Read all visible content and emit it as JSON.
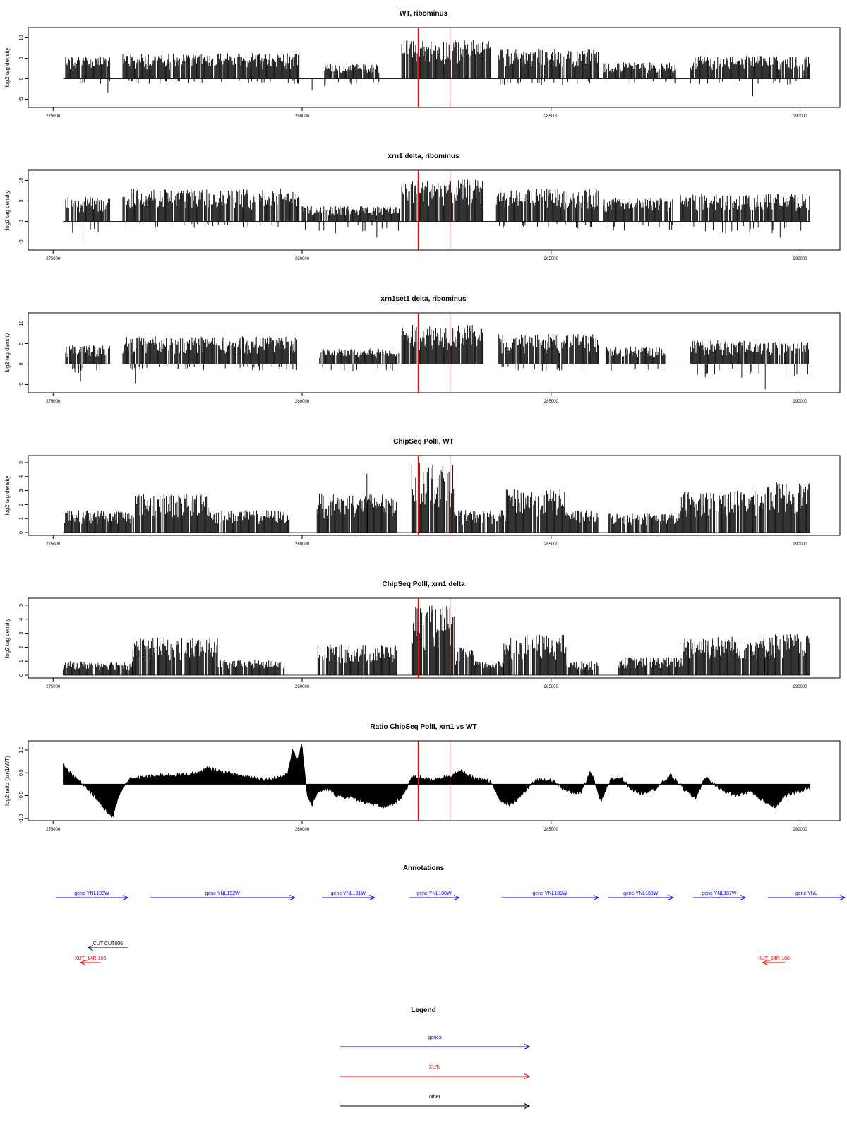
{
  "colors": {
    "bars": "#000000",
    "marker": "#ff0000",
    "gene": "#0000ff",
    "xut": "#ff0000",
    "other": "#000000",
    "background": "#ffffff"
  },
  "shared": {
    "xlim": [
      274500,
      290800
    ],
    "x_ticks": [
      275000,
      280000,
      285000,
      290000
    ],
    "x_tick_labels": [
      "275000",
      "280000",
      "285000",
      "290000"
    ],
    "marker_positions": [
      282330,
      282970
    ],
    "grid": false
  },
  "chart_data": [
    {
      "type": "bar",
      "title": "WT, ribominus",
      "ylabel": "log2 tag density",
      "ylim": [
        -7,
        12.5
      ],
      "y_ticks": [
        -5,
        0,
        5,
        10
      ],
      "y_tick_labels": [
        "-5",
        "0",
        "5",
        "10"
      ],
      "segments": [
        {
          "x": [
            275250,
            276150
          ],
          "pos": 5.5,
          "neg": 1.6
        },
        {
          "x": [
            276400,
            279950
          ],
          "pos": 6.3,
          "neg": 1.3
        },
        {
          "x": [
            280450,
            281550
          ],
          "pos": 3.6,
          "neg": 2.0
        },
        {
          "x": [
            282000,
            283800
          ],
          "pos": 9.5,
          "neg": 0
        },
        {
          "x": [
            283950,
            285950
          ],
          "pos": 7.3,
          "neg": 1.5
        },
        {
          "x": [
            286050,
            287500
          ],
          "pos": 4.0,
          "neg": 1.6
        },
        {
          "x": [
            287800,
            290200
          ],
          "pos": 5.6,
          "neg": 1.5
        }
      ],
      "peaks": [
        {
          "x": 276100,
          "value": -3.4
        },
        {
          "x": 289050,
          "value": -4.3
        },
        {
          "x": 280200,
          "value": -2.9
        }
      ]
    },
    {
      "type": "bar",
      "title": "xrn1 delta, ribominus",
      "ylabel": "log2 tag density",
      "ylim": [
        -7,
        12.5
      ],
      "y_ticks": [
        -5,
        0,
        5,
        10
      ],
      "y_tick_labels": [
        "-5",
        "0",
        "5",
        "10"
      ],
      "segments": [
        {
          "x": [
            275250,
            276150
          ],
          "pos": 6.0,
          "neg": 3.0
        },
        {
          "x": [
            276400,
            279950
          ],
          "pos": 8.0,
          "neg": 1.6
        },
        {
          "x": [
            280000,
            281950
          ],
          "pos": 3.8,
          "neg": 3.0
        },
        {
          "x": [
            282000,
            283650
          ],
          "pos": 10.2,
          "neg": 0
        },
        {
          "x": [
            283900,
            285950
          ],
          "pos": 8.0,
          "neg": 1.8
        },
        {
          "x": [
            286050,
            287450
          ],
          "pos": 5.8,
          "neg": 2.5
        },
        {
          "x": [
            287600,
            290200
          ],
          "pos": 6.8,
          "neg": 3.0
        }
      ],
      "peaks": [
        {
          "x": 275600,
          "value": -4.5
        },
        {
          "x": 281500,
          "value": -4.0
        },
        {
          "x": 289600,
          "value": -4.0
        }
      ]
    },
    {
      "type": "bar",
      "title": "xrn1set1 delta, ribominus",
      "ylabel": "log2 tag density",
      "ylim": [
        -7,
        12.5
      ],
      "y_ticks": [
        -5,
        0,
        5,
        10
      ],
      "y_tick_labels": [
        "-5",
        "0",
        "5",
        "10"
      ],
      "segments": [
        {
          "x": [
            275250,
            276150
          ],
          "pos": 4.6,
          "neg": 2.2
        },
        {
          "x": [
            276400,
            279900
          ],
          "pos": 6.8,
          "neg": 1.6
        },
        {
          "x": [
            280350,
            281950
          ],
          "pos": 3.8,
          "neg": 2.0
        },
        {
          "x": [
            282000,
            283650
          ],
          "pos": 9.6,
          "neg": 0
        },
        {
          "x": [
            283950,
            285950
          ],
          "pos": 7.4,
          "neg": 1.8
        },
        {
          "x": [
            286100,
            287300
          ],
          "pos": 4.3,
          "neg": 2.0
        },
        {
          "x": [
            287800,
            290200
          ],
          "pos": 5.8,
          "neg": 3.4
        }
      ],
      "peaks": [
        {
          "x": 276650,
          "value": -4.8
        },
        {
          "x": 289300,
          "value": -6.2
        },
        {
          "x": 275550,
          "value": -4.3
        }
      ]
    },
    {
      "type": "bar",
      "title": "ChipSeq PolII, WT",
      "ylabel": "log2 tag density",
      "ylim": [
        -0.2,
        5.5
      ],
      "y_ticks": [
        0,
        1,
        2,
        3,
        4,
        5
      ],
      "y_tick_labels": [
        "0",
        "1",
        "2",
        "3",
        "4",
        "5"
      ],
      "segments": [
        {
          "x": [
            275200,
            276600
          ],
          "pos": 1.6,
          "neg": 0
        },
        {
          "x": [
            276600,
            278150
          ],
          "pos": 2.8,
          "neg": 0
        },
        {
          "x": [
            278150,
            279750
          ],
          "pos": 1.6,
          "neg": 0
        },
        {
          "x": [
            280300,
            281900
          ],
          "pos": 2.8,
          "neg": 0
        },
        {
          "x": [
            282200,
            283050
          ],
          "pos": 5.0,
          "neg": 0
        },
        {
          "x": [
            283050,
            284100
          ],
          "pos": 1.6,
          "neg": 0
        },
        {
          "x": [
            284100,
            285300
          ],
          "pos": 3.1,
          "neg": 0
        },
        {
          "x": [
            285300,
            285950
          ],
          "pos": 1.6,
          "neg": 0
        },
        {
          "x": [
            286150,
            287600
          ],
          "pos": 1.4,
          "neg": 0
        },
        {
          "x": [
            287600,
            289300
          ],
          "pos": 3.0,
          "neg": 0
        },
        {
          "x": [
            289300,
            290200
          ],
          "pos": 3.6,
          "neg": 0
        }
      ],
      "peaks": [
        {
          "x": 281300,
          "value": 4.2
        }
      ]
    },
    {
      "type": "bar",
      "title": "ChipSeq PolII, xrn1 delta",
      "ylabel": "log2 tag density",
      "ylim": [
        -0.2,
        5.5
      ],
      "y_ticks": [
        0,
        1,
        2,
        3,
        4,
        5
      ],
      "y_tick_labels": [
        "0",
        "1",
        "2",
        "3",
        "4",
        "5"
      ],
      "segments": [
        {
          "x": [
            275200,
            276600
          ],
          "pos": 1.0,
          "neg": 0
        },
        {
          "x": [
            276600,
            278300
          ],
          "pos": 2.7,
          "neg": 0
        },
        {
          "x": [
            278300,
            279650
          ],
          "pos": 1.1,
          "neg": 0
        },
        {
          "x": [
            280300,
            281900
          ],
          "pos": 2.2,
          "neg": 0
        },
        {
          "x": [
            282200,
            283050
          ],
          "pos": 5.0,
          "neg": 0
        },
        {
          "x": [
            283050,
            283450
          ],
          "pos": 2.0,
          "neg": 0
        },
        {
          "x": [
            283450,
            284050
          ],
          "pos": 1.0,
          "neg": 0
        },
        {
          "x": [
            284050,
            285300
          ],
          "pos": 2.9,
          "neg": 0
        },
        {
          "x": [
            285300,
            285950
          ],
          "pos": 1.0,
          "neg": 0
        },
        {
          "x": [
            286350,
            287650
          ],
          "pos": 1.3,
          "neg": 0
        },
        {
          "x": [
            287650,
            289300
          ],
          "pos": 2.8,
          "neg": 0
        },
        {
          "x": [
            289300,
            290200
          ],
          "pos": 3.0,
          "neg": 0
        }
      ],
      "peaks": [
        {
          "x": 283050,
          "value": 4.2
        }
      ]
    },
    {
      "type": "area",
      "title": "Ratio ChipSeq PolII, xrn1 vs WT",
      "ylabel": "log2 ratio (xrn1/WT)",
      "ylim": [
        -1.6,
        1.9
      ],
      "y_ticks": [
        -1.5,
        -0.5,
        0.5,
        1.5
      ],
      "y_tick_labels": [
        "-1.5",
        "-0.5",
        "0.5",
        "1.5"
      ],
      "profile_x": [
        275200,
        275300,
        275500,
        275700,
        275900,
        276100,
        276200,
        276300,
        276500,
        276800,
        277200,
        277600,
        277900,
        278100,
        278300,
        278700,
        279000,
        279300,
        279500,
        279700,
        279800,
        279900,
        280000,
        280100,
        280200,
        280300,
        280500,
        280700,
        281000,
        281300,
        281600,
        281800,
        282000,
        282200,
        282400,
        282600,
        282800,
        283000,
        283200,
        283400,
        283600,
        283800,
        284000,
        284200,
        284400,
        284700,
        285000,
        285300,
        285600,
        285800,
        286000,
        286200,
        286400,
        286600,
        286800,
        287100,
        287400,
        287700,
        287900,
        288100,
        288400,
        288700,
        289000,
        289300,
        289500,
        289700,
        290000,
        290200
      ],
      "profile_y": [
        0.9,
        0.6,
        0.2,
        -0.2,
        -0.7,
        -1.3,
        -1.45,
        -0.6,
        0.2,
        0.3,
        0.4,
        0.4,
        0.5,
        0.7,
        0.6,
        0.4,
        0.3,
        0.2,
        0.3,
        0.4,
        1.5,
        1.1,
        1.7,
        -0.5,
        -0.9,
        -0.4,
        -0.2,
        -0.5,
        -0.6,
        -0.8,
        -1.0,
        -0.9,
        -0.6,
        0.3,
        0.3,
        0.2,
        0.3,
        0.4,
        0.6,
        0.3,
        0.2,
        0.1,
        -0.8,
        -0.9,
        -0.5,
        0.2,
        0.2,
        -0.3,
        -0.4,
        0.6,
        -0.8,
        0.2,
        0.3,
        -0.2,
        -0.4,
        -0.2,
        0.4,
        -0.3,
        -0.6,
        0.3,
        -0.2,
        -0.5,
        -0.3,
        -0.8,
        -1.0,
        -0.5,
        -0.3,
        -0.1
      ]
    }
  ],
  "annotations": {
    "title": "Annotations",
    "features": [
      {
        "label": "gene YNL193W",
        "kind": "gene",
        "start": 275050,
        "end": 276500,
        "strand": "+",
        "row": 1
      },
      {
        "label": "gene YNL192W",
        "kind": "gene",
        "start": 276950,
        "end": 279850,
        "strand": "+",
        "row": 1
      },
      {
        "label": "gene YNL191W",
        "kind": "gene",
        "start": 280400,
        "end": 281450,
        "strand": "+",
        "row": 1
      },
      {
        "label": "gene YNL190W",
        "kind": "gene",
        "start": 282150,
        "end": 283150,
        "strand": "+",
        "row": 1
      },
      {
        "label": "gene YNL189W",
        "kind": "gene",
        "start": 284000,
        "end": 285950,
        "strand": "+",
        "row": 1
      },
      {
        "label": "gene YNL188W",
        "kind": "gene",
        "start": 286150,
        "end": 287450,
        "strand": "+",
        "row": 1
      },
      {
        "label": "gene YNL187W",
        "kind": "gene",
        "start": 287850,
        "end": 288900,
        "strand": "+",
        "row": 1
      },
      {
        "label": "gene YNL",
        "kind": "gene",
        "start": 289350,
        "end": 290900,
        "strand": "+",
        "row": 1
      },
      {
        "label": "CUT CUT806",
        "kind": "other",
        "start": 275700,
        "end": 276500,
        "strand": "-",
        "row": 2
      },
      {
        "label": "XUT_14R-106",
        "kind": "xut",
        "start": 275550,
        "end": 275950,
        "strand": "-",
        "row": 3
      },
      {
        "label": "XUT_14R-108",
        "kind": "xut",
        "start": 289250,
        "end": 289700,
        "strand": "-",
        "row": 3
      }
    ]
  },
  "legend": {
    "title": "Legend",
    "entries": [
      {
        "label": "genes",
        "kind": "gene"
      },
      {
        "label": "XUTs",
        "kind": "xut"
      },
      {
        "label": "other",
        "kind": "other"
      }
    ]
  }
}
